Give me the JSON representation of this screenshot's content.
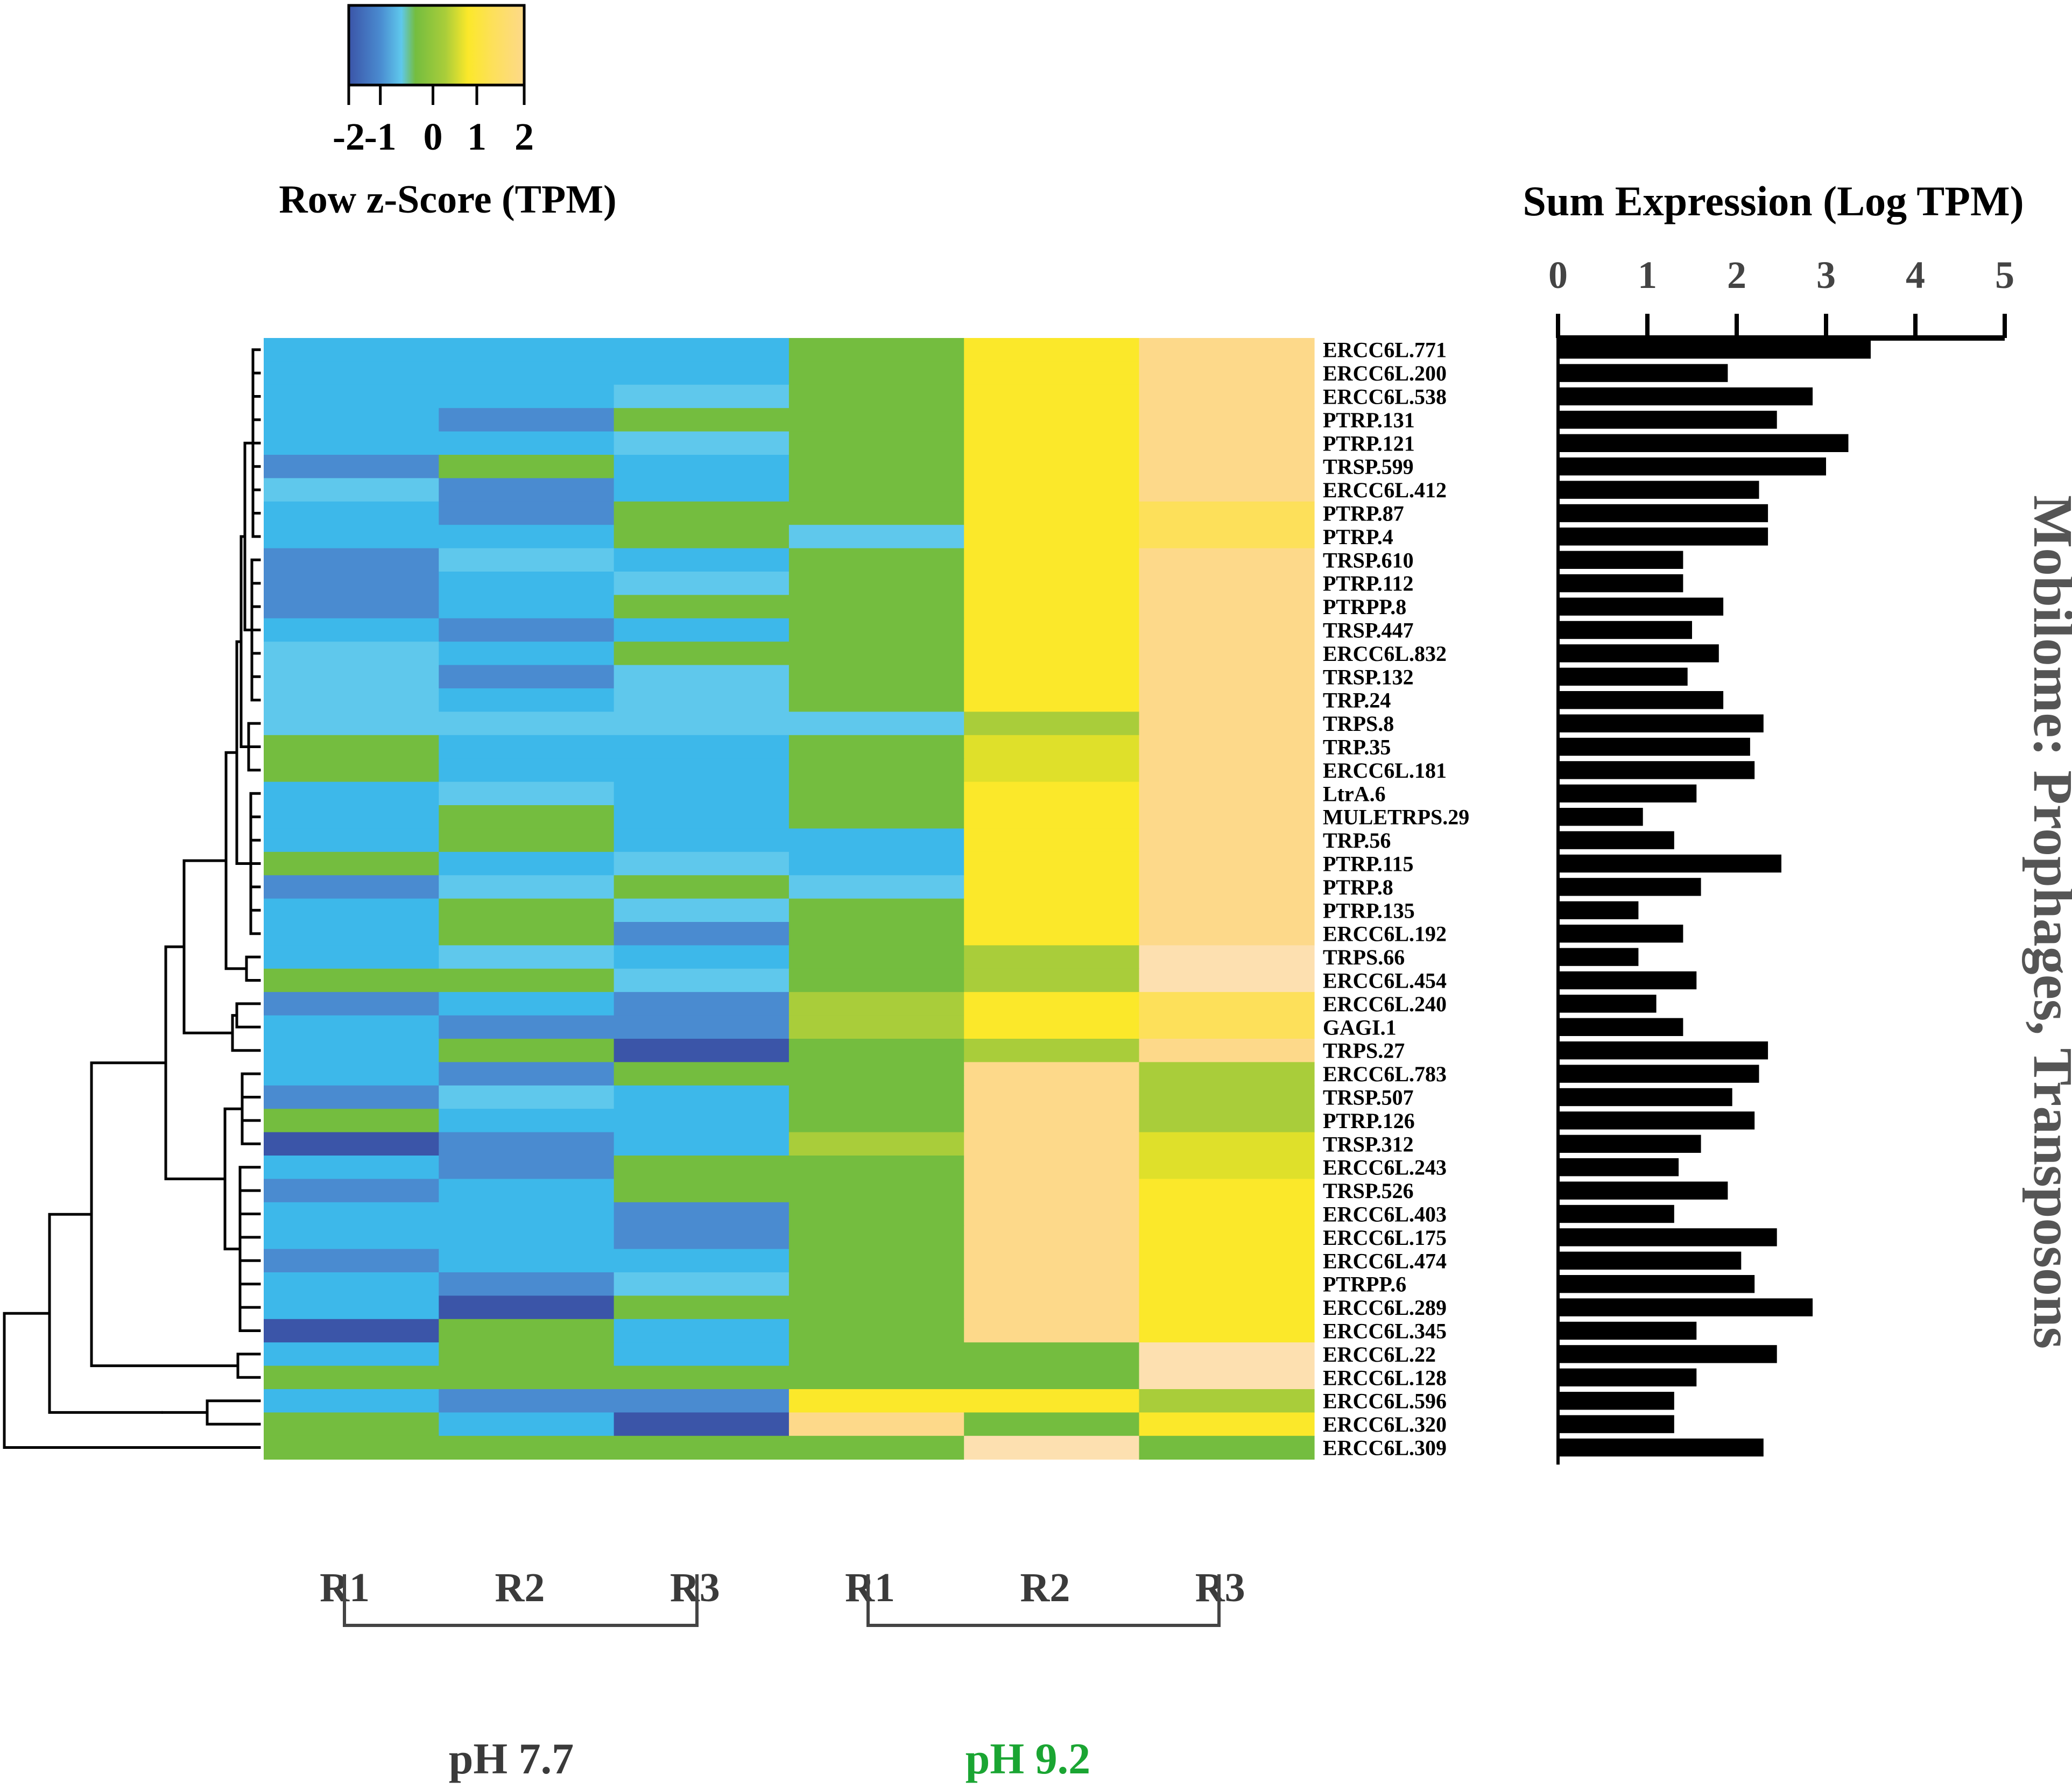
{
  "colors": {
    "c_-3": "#3b55a8",
    "c_-2": "#4a8bd0",
    "c_-1": "#3db8ea",
    "c_0": "#5fc8ec",
    "c_1": "#74bd3f",
    "c_2": "#a9cd3a",
    "c_3": "#dfe02a",
    "c_4": "#fbe82a",
    "c_5": "#fde05a",
    "c_6": "#fdd98a",
    "c_7": "#fde0b0",
    "ink": "#000000",
    "gray_text": "#3a3a3a",
    "ph92_text": "#1aa532"
  },
  "chart_data": [
    {
      "type": "heatmap",
      "title": "Row z-Score (TPM)",
      "colorbar": {
        "ticks": [
          "-2",
          "-1",
          "0",
          "1",
          "2"
        ],
        "range": [
          -2,
          2
        ]
      },
      "columns": [
        "R1",
        "R2",
        "R3",
        "R1",
        "R2",
        "R3"
      ],
      "groups": [
        {
          "label": "pH 7.7",
          "columns": [
            0,
            1,
            2
          ]
        },
        {
          "label": "pH 9.2",
          "columns": [
            3,
            4,
            5
          ]
        }
      ],
      "rows": [
        "ERCC6L.771",
        "ERCC6L.200",
        "ERCC6L.538",
        "PTRP.131",
        "PTRP.121",
        "TRSP.599",
        "ERCC6L.412",
        "PTRP.87",
        "PTRP.4",
        "TRSP.610",
        "PTRP.112",
        "PTRPP.8",
        "TRSP.447",
        "ERCC6L.832",
        "TRSP.132",
        "TRP.24",
        "TRPS.8",
        "TRP.35",
        "ERCC6L.181",
        "LtrA.6",
        "MULETRPS.29",
        "TRP.56",
        "PTRP.115",
        "PTRP.8",
        "PTRP.135",
        "ERCC6L.192",
        "TRPS.66",
        "ERCC6L.454",
        "ERCC6L.240",
        "GAGI.1",
        "TRPS.27",
        "ERCC6L.783",
        "TRSP.507",
        "PTRP.126",
        "TRSP.312",
        "ERCC6L.243",
        "TRSP.526",
        "ERCC6L.403",
        "ERCC6L.175",
        "ERCC6L.474",
        "PTRPP.6",
        "ERCC6L.289",
        "ERCC6L.345",
        "ERCC6L.22",
        "ERCC6L.128",
        "ERCC6L.596",
        "ERCC6L.320",
        "ERCC6L.309"
      ],
      "values": [
        [
          -1,
          -1,
          -1,
          1,
          4,
          6
        ],
        [
          -1,
          -1,
          -1,
          1,
          4,
          6
        ],
        [
          -1,
          -1,
          0,
          1,
          4,
          6
        ],
        [
          -1,
          -2,
          1,
          1,
          4,
          6
        ],
        [
          -1,
          -1,
          0,
          1,
          4,
          6
        ],
        [
          -2,
          1,
          -1,
          1,
          4,
          6
        ],
        [
          0,
          -2,
          -1,
          1,
          4,
          6
        ],
        [
          -1,
          -2,
          1,
          1,
          4,
          5
        ],
        [
          -1,
          -1,
          1,
          0,
          4,
          5
        ],
        [
          -2,
          0,
          -1,
          1,
          4,
          6
        ],
        [
          -2,
          -1,
          0,
          1,
          4,
          6
        ],
        [
          -2,
          -1,
          1,
          1,
          4,
          6
        ],
        [
          -1,
          -2,
          -1,
          1,
          4,
          6
        ],
        [
          0,
          -1,
          1,
          1,
          4,
          6
        ],
        [
          0,
          -2,
          0,
          1,
          4,
          6
        ],
        [
          0,
          -1,
          0,
          1,
          4,
          6
        ],
        [
          0,
          0,
          0,
          0,
          2,
          6
        ],
        [
          1,
          -1,
          -1,
          1,
          3,
          6
        ],
        [
          1,
          -1,
          -1,
          1,
          3,
          6
        ],
        [
          -1,
          0,
          -1,
          1,
          4,
          6
        ],
        [
          -1,
          1,
          -1,
          1,
          4,
          6
        ],
        [
          -1,
          1,
          -1,
          -1,
          4,
          6
        ],
        [
          1,
          -1,
          0,
          -1,
          4,
          6
        ],
        [
          -2,
          0,
          1,
          0,
          4,
          6
        ],
        [
          -1,
          1,
          0,
          1,
          4,
          6
        ],
        [
          -1,
          1,
          -2,
          1,
          4,
          6
        ],
        [
          -1,
          0,
          -1,
          1,
          2,
          7
        ],
        [
          1,
          1,
          0,
          1,
          2,
          7
        ],
        [
          -2,
          -1,
          -2,
          2,
          4,
          5
        ],
        [
          -1,
          -2,
          -2,
          2,
          4,
          5
        ],
        [
          -1,
          1,
          -3,
          1,
          2,
          6
        ],
        [
          -1,
          -2,
          1,
          1,
          6,
          2
        ],
        [
          -2,
          0,
          -1,
          1,
          6,
          2
        ],
        [
          1,
          -1,
          -1,
          1,
          6,
          2
        ],
        [
          -3,
          -2,
          -1,
          2,
          6,
          3
        ],
        [
          -1,
          -2,
          1,
          1,
          6,
          3
        ],
        [
          -2,
          -1,
          1,
          1,
          6,
          4
        ],
        [
          -1,
          -1,
          -2,
          1,
          6,
          4
        ],
        [
          -1,
          -1,
          -2,
          1,
          6,
          4
        ],
        [
          -2,
          -1,
          -1,
          1,
          6,
          4
        ],
        [
          -1,
          -2,
          0,
          1,
          6,
          4
        ],
        [
          -1,
          -3,
          1,
          1,
          6,
          4
        ],
        [
          -3,
          1,
          -1,
          1,
          6,
          4
        ],
        [
          -1,
          1,
          -1,
          1,
          1,
          7
        ],
        [
          1,
          1,
          1,
          1,
          1,
          7
        ],
        [
          -1,
          -2,
          -2,
          4,
          4,
          2
        ],
        [
          1,
          -1,
          -3,
          6,
          1,
          4
        ],
        [
          1,
          1,
          1,
          1,
          7,
          1
        ]
      ]
    },
    {
      "type": "bar",
      "orientation": "horizontal",
      "title": "Sum Expression (Log TPM)",
      "xlim": [
        0,
        5
      ],
      "xticks": [
        "0",
        "1",
        "2",
        "3",
        "4",
        "5"
      ],
      "side_label": "Mobilome: Prophages, Transposons",
      "values": [
        3.5,
        1.9,
        2.85,
        2.45,
        3.25,
        3.0,
        2.25,
        2.35,
        2.35,
        1.4,
        1.4,
        1.85,
        1.5,
        1.8,
        1.45,
        1.85,
        2.3,
        2.15,
        2.2,
        1.55,
        0.95,
        1.3,
        2.5,
        1.6,
        0.9,
        1.4,
        0.9,
        1.55,
        1.1,
        1.4,
        2.35,
        2.25,
        1.95,
        2.2,
        1.6,
        1.35,
        1.9,
        1.3,
        2.45,
        2.05,
        2.2,
        2.85,
        1.55,
        2.45,
        1.55,
        1.3,
        1.3,
        2.3
      ]
    }
  ]
}
